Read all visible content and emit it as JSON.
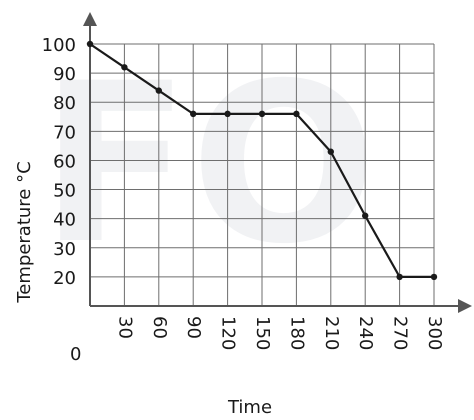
{
  "chart_data": {
    "type": "line",
    "xlabel": "Time",
    "ylabel": "Temperature °C",
    "x_ticks": [
      30,
      60,
      90,
      120,
      150,
      180,
      210,
      240,
      270,
      300
    ],
    "y_ticks": [
      20,
      30,
      40,
      50,
      60,
      70,
      80,
      90,
      100
    ],
    "origin_label": "0",
    "xlim": [
      0,
      300
    ],
    "ylim": [
      10,
      100
    ],
    "grid": true,
    "series": [
      {
        "x": [
          0,
          30,
          60,
          90,
          120,
          150,
          180,
          210,
          240,
          270,
          300
        ],
        "y": [
          100,
          92,
          84,
          76,
          76,
          76,
          76,
          63,
          41,
          20,
          20
        ]
      }
    ],
    "colors": {
      "line": "#1a1a1a",
      "grid": "#6e6e6e",
      "axis": "#555555"
    },
    "watermark": "FO"
  }
}
